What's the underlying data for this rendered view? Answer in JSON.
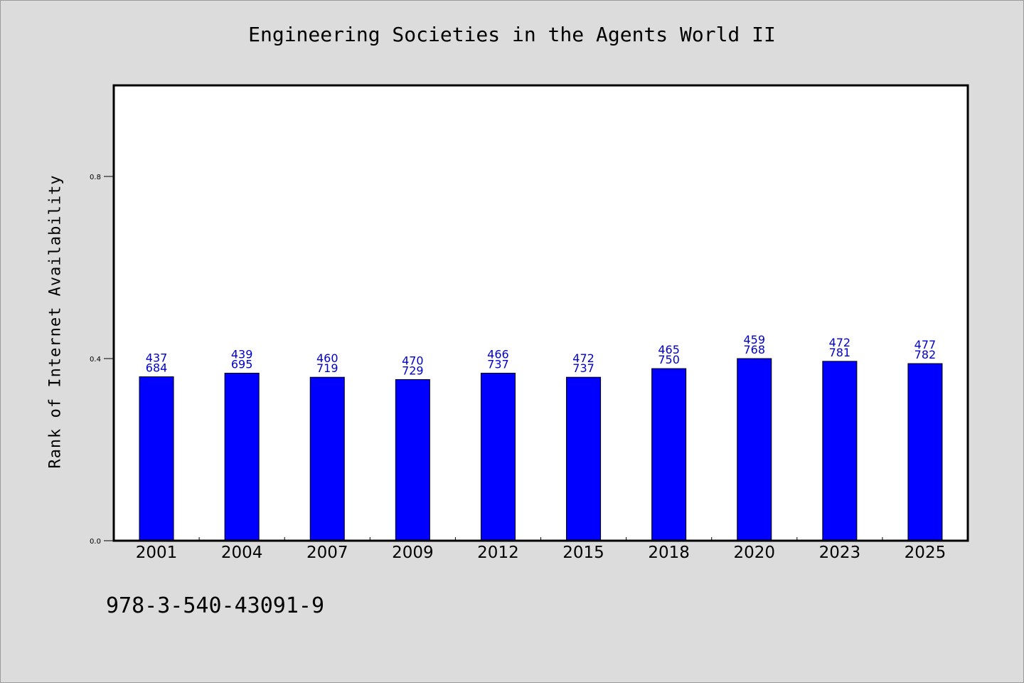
{
  "chart_data": {
    "type": "bar",
    "title": "Engineering Societies in the Agents World II",
    "xlabel": "",
    "ylabel": "Rank of Internet Availability",
    "ylim": [
      0,
      1.0
    ],
    "yticks": [
      "0.0",
      "0.4",
      "0.8"
    ],
    "yticks_values": [
      0.0,
      0.4,
      0.8
    ],
    "grid": false,
    "categories": [
      "2001",
      "2004",
      "2007",
      "2009",
      "2012",
      "2015",
      "2018",
      "2020",
      "2023",
      "2025"
    ],
    "values": [
      0.36,
      0.368,
      0.359,
      0.354,
      0.368,
      0.359,
      0.378,
      0.4,
      0.394,
      0.389
    ],
    "labels_top": [
      "437",
      "439",
      "460",
      "470",
      "466",
      "472",
      "465",
      "459",
      "472",
      "477"
    ],
    "labels_bottom": [
      "684",
      "695",
      "719",
      "729",
      "737",
      "737",
      "750",
      "768",
      "781",
      "782"
    ],
    "bar_color": "#0000ff",
    "label_color": "#0000cc"
  },
  "footer": {
    "isbn": "978-3-540-43091-9"
  }
}
